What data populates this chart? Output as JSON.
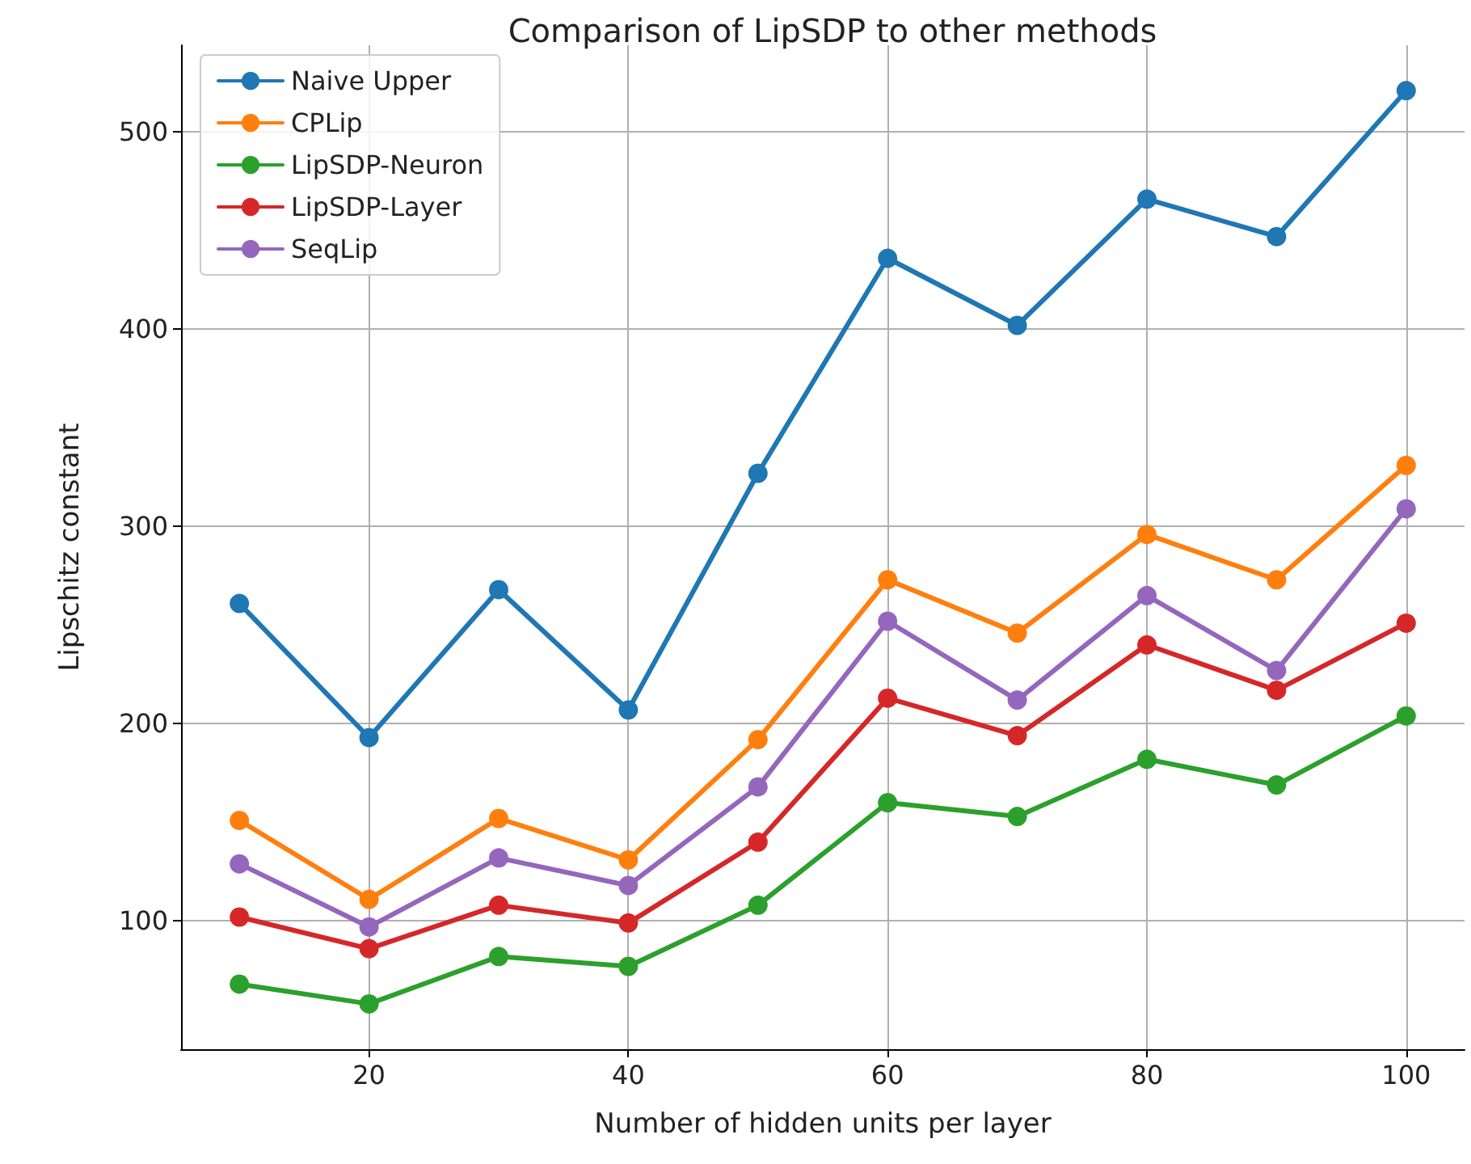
{
  "chart_data": {
    "type": "line",
    "title": "Comparison of LipSDP to other methods",
    "xlabel": "Number of hidden units per layer",
    "ylabel": "Lipschitz constant",
    "x": [
      10,
      20,
      30,
      40,
      50,
      60,
      70,
      80,
      90,
      100
    ],
    "series": [
      {
        "name": "Naive Upper",
        "color": "#1f77b4",
        "values": [
          261,
          193,
          268,
          207,
          327,
          436,
          402,
          466,
          447,
          521
        ]
      },
      {
        "name": "CPLip",
        "color": "#ff7f0e",
        "values": [
          151,
          111,
          152,
          131,
          192,
          273,
          246,
          296,
          273,
          331
        ]
      },
      {
        "name": "LipSDP-Neuron",
        "color": "#2ca02c",
        "values": [
          68,
          58,
          82,
          77,
          108,
          160,
          153,
          182,
          169,
          204
        ]
      },
      {
        "name": "LipSDP-Layer",
        "color": "#d62728",
        "values": [
          102,
          86,
          108,
          99,
          140,
          213,
          194,
          240,
          217,
          251
        ]
      },
      {
        "name": "SeqLip",
        "color": "#9467bd",
        "values": [
          129,
          97,
          132,
          118,
          168,
          252,
          212,
          265,
          227,
          309
        ]
      }
    ],
    "xlim": [
      5.5,
      104.5
    ],
    "xticks": [
      20,
      40,
      60,
      80,
      100
    ],
    "ylim": [
      35,
      544
    ],
    "yticks": [
      100,
      200,
      300,
      400,
      500
    ],
    "grid": true,
    "legend": "top left",
    "marker": "circle",
    "line_style": "solid"
  }
}
